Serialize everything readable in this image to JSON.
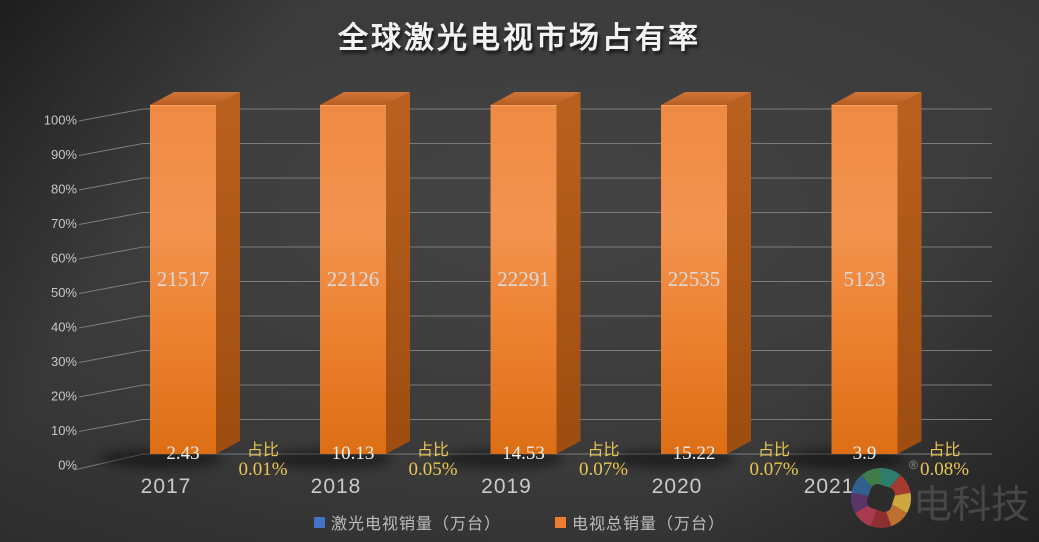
{
  "title": "全球激光电视市场占有率",
  "chart_data": {
    "type": "bar",
    "variant": "3d-column-percentage",
    "title": "全球激光电视市场占有率",
    "categories": [
      "2017",
      "2018",
      "2019",
      "2020",
      "2021.1Q"
    ],
    "series": [
      {
        "name": "激光电视销量（万台）",
        "color": "#4472c4",
        "values": [
          2.43,
          10.13,
          14.53,
          15.22,
          3.9
        ]
      },
      {
        "name": "电视总销量（万台）",
        "color": "#ed7d31",
        "values": [
          21517,
          22126,
          22291,
          22535,
          5123
        ]
      }
    ],
    "share_annotation": {
      "prefix": "占比",
      "values": [
        "0.01%",
        "0.05%",
        "0.07%",
        "0.07%",
        "0.08%"
      ],
      "color": "#e8c653"
    },
    "y_axis": {
      "unit": "%",
      "min": 0,
      "max": 100,
      "ticks": [
        "0%",
        "10%",
        "20%",
        "30%",
        "40%",
        "50%",
        "60%",
        "70%",
        "80%",
        "90%",
        "100%"
      ]
    },
    "grid": true,
    "legend_position": "bottom",
    "note": "total-sales columns drawn at full 100% height; laser-TV share printed as text beside each column"
  },
  "labels": {
    "in_bar_color": "#dadada",
    "bottom_value_color": "#efefef",
    "category_color": "#c9c9c9",
    "tick_color": "#c6c6c6"
  },
  "watermark": {
    "brand": "电科技",
    "registered": "®",
    "petal_colors": [
      "#2d7c6c",
      "#a43b31",
      "#cfa53d",
      "#bd6f2f",
      "#8e2f2f",
      "#aa3a50",
      "#5a3668",
      "#31608e",
      "#3e7c49"
    ]
  }
}
